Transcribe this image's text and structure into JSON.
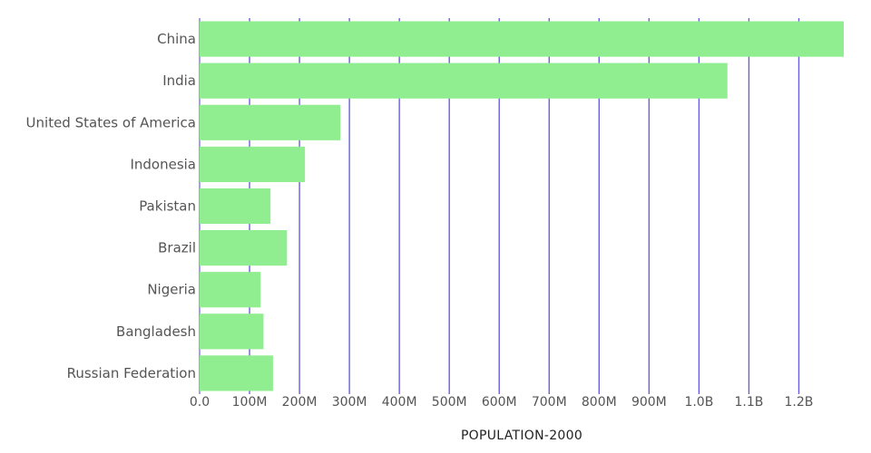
{
  "chart_data": {
    "type": "bar",
    "orientation": "horizontal",
    "title": "",
    "xlabel": "POPULATION-2000",
    "ylabel": "",
    "categories": [
      "China",
      "India",
      "United States of America",
      "Indonesia",
      "Pakistan",
      "Brazil",
      "Nigeria",
      "Bangladesh",
      "Russian Federation"
    ],
    "values": [
      1290000000,
      1057000000,
      282000000,
      211000000,
      142000000,
      175000000,
      122000000,
      128000000,
      147000000
    ],
    "xlim": [
      0,
      1290000000
    ],
    "ticks": [
      0,
      100000000,
      200000000,
      300000000,
      400000000,
      500000000,
      600000000,
      700000000,
      800000000,
      900000000,
      1000000000,
      1100000000,
      1200000000
    ],
    "tick_labels": [
      "0.0",
      "100M",
      "200M",
      "300M",
      "400M",
      "500M",
      "600M",
      "700M",
      "800M",
      "900M",
      "1.0B",
      "1.1B",
      "1.2B"
    ],
    "grid": true,
    "colors": {
      "bar": "#90ee90",
      "grid": "#6a5fe0"
    }
  }
}
